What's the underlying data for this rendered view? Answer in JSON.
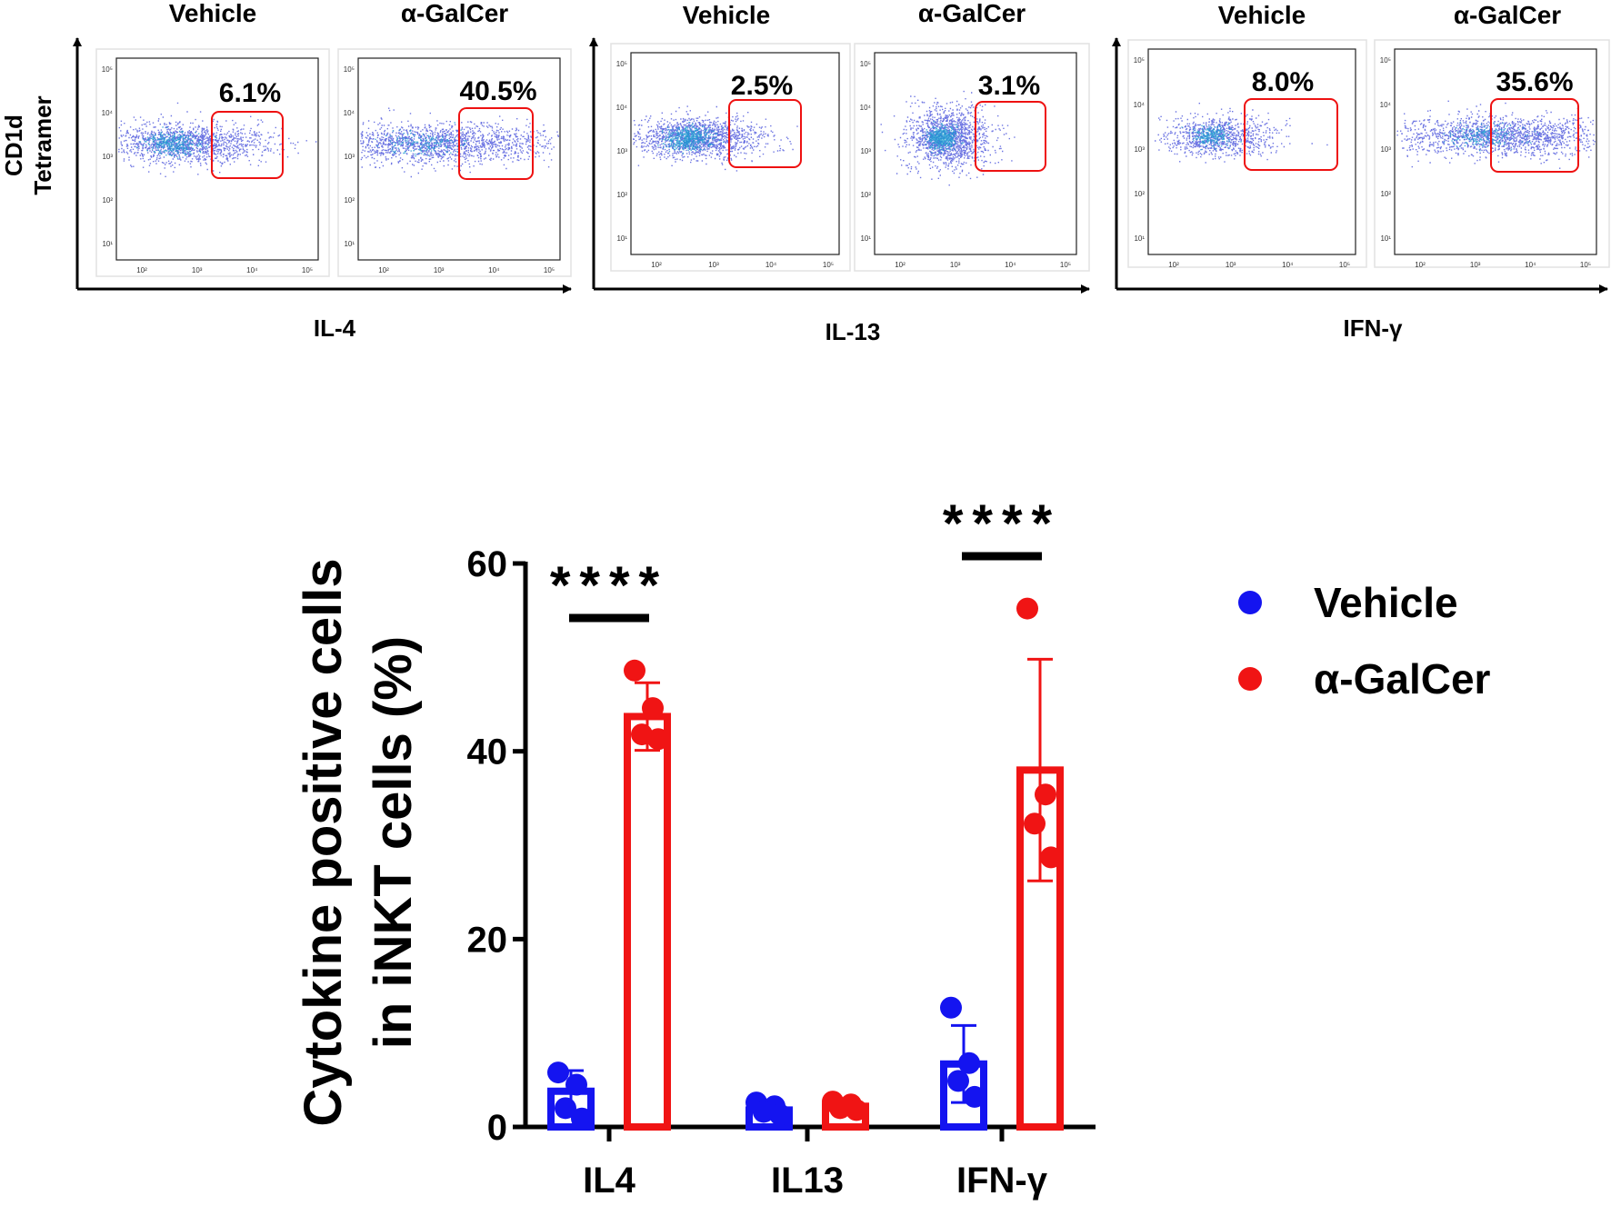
{
  "flow_panel": {
    "y_axis_label_line1": "CD1d",
    "y_axis_label_line2": "Tetramer",
    "tick_labels": [
      "10¹",
      "10²",
      "10³",
      "10⁴",
      "10⁵"
    ],
    "groups": [
      {
        "cytokine": "IL-4",
        "plots": [
          {
            "condition": "Vehicle",
            "percent": "6.1%"
          },
          {
            "condition": "α-GalCer",
            "percent": "40.5%"
          }
        ]
      },
      {
        "cytokine": "IL-13",
        "plots": [
          {
            "condition": "Vehicle",
            "percent": "2.5%"
          },
          {
            "condition": "α-GalCer",
            "percent": "3.1%"
          }
        ]
      },
      {
        "cytokine": "IFN-γ",
        "plots": [
          {
            "condition": "Vehicle",
            "percent": "8.0%"
          },
          {
            "condition": "α-GalCer",
            "percent": "35.6%"
          }
        ]
      }
    ]
  },
  "chart_data": {
    "type": "bar",
    "title": "",
    "ylabel_line1": "Cytokine positive cells",
    "ylabel_line2": "in iNKT cells  (%)",
    "xlabel": "",
    "ylim": [
      0,
      60
    ],
    "yticks": [
      0,
      20,
      40,
      60
    ],
    "categories": [
      "IL4",
      "IL13",
      "IFN-γ"
    ],
    "colors": {
      "Vehicle": "#1414f0",
      "α-GalCer": "#f01414"
    },
    "series": [
      {
        "name": "Vehicle",
        "values": [
          3.8,
          1.8,
          6.7
        ],
        "sd": [
          2.2,
          0.6,
          4.1
        ],
        "points": [
          [
            5.8,
            4.5,
            2.0,
            0.9
          ],
          [
            2.6,
            2.2,
            1.6,
            1.3
          ],
          [
            12.7,
            6.8,
            4.9,
            3.2
          ]
        ]
      },
      {
        "name": "α-GalCer",
        "values": [
          43.7,
          2.2,
          38.0
        ],
        "sd": [
          3.6,
          0.5,
          11.8
        ],
        "points": [
          [
            48.6,
            44.6,
            41.8,
            41.3
          ],
          [
            2.7,
            2.4,
            2.0,
            1.8
          ],
          [
            55.2,
            35.4,
            32.3,
            28.7
          ]
        ]
      }
    ],
    "significance": [
      {
        "category": "IL4",
        "label": "****"
      },
      {
        "category": "IFN-γ",
        "label": "****"
      }
    ],
    "legend": [
      "Vehicle",
      "α-GalCer"
    ],
    "legend_position": "right"
  }
}
